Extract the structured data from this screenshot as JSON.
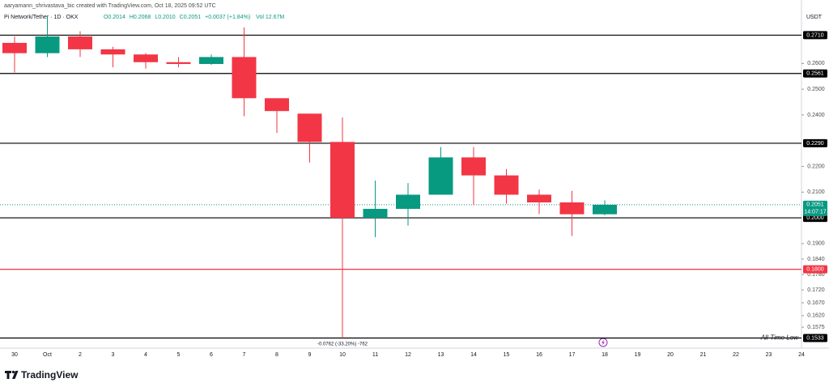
{
  "chart_data": {
    "type": "candlestick",
    "attribution": "aaryamann_shrivastava_bic created with TradingView.com, Oct 18, 2025 09:52 UTC",
    "title": "Pi Network/Tether · 1D · OKX",
    "legend_ohlc": [
      "O0.2014",
      "H0.2068",
      "L0.2010",
      "C0.2051",
      "+0.0037 (+1.84%)"
    ],
    "volume_label": "Vol 12.67M",
    "currency": "USDT",
    "brand": "TradingView",
    "up_color": "#089981",
    "down_color": "#f23645",
    "categories": [
      "30",
      "Oct",
      "2",
      "3",
      "4",
      "5",
      "6",
      "7",
      "8",
      "9",
      "10",
      "11",
      "12",
      "13",
      "14",
      "15",
      "16",
      "17",
      "18",
      "19",
      "20",
      "21",
      "22",
      "23",
      "24"
    ],
    "open": [
      0.268,
      0.264,
      0.2705,
      0.2655,
      0.2635,
      0.2605,
      0.2598,
      0.2625,
      0.2465,
      0.2405,
      0.2295,
      0.2,
      0.2035,
      0.209,
      0.2235,
      0.2165,
      0.209,
      0.206,
      0.2014,
      null,
      null,
      null,
      null,
      null,
      null
    ],
    "high": [
      0.2705,
      0.278,
      0.2725,
      0.2665,
      0.264,
      0.2625,
      0.2635,
      0.274,
      0.2465,
      0.2405,
      0.239,
      0.2145,
      0.2135,
      0.2275,
      0.2275,
      0.219,
      0.211,
      0.2105,
      0.2068,
      null,
      null,
      null,
      null,
      null,
      null
    ],
    "low": [
      0.2565,
      0.2625,
      0.2625,
      0.2585,
      0.258,
      0.2585,
      0.2595,
      0.2395,
      0.233,
      0.2215,
      0.1533,
      0.1925,
      0.197,
      0.209,
      0.205,
      0.2055,
      0.2015,
      0.193,
      0.201,
      null,
      null,
      null,
      null,
      null,
      null
    ],
    "close": [
      0.264,
      0.2705,
      0.2655,
      0.2635,
      0.2605,
      0.2598,
      0.2625,
      0.2465,
      0.2415,
      0.2295,
      0.2,
      0.2035,
      0.209,
      0.2235,
      0.2165,
      0.209,
      0.206,
      0.2014,
      0.2051,
      null,
      null,
      null,
      null,
      null,
      null
    ],
    "ylim": [
      0.15,
      0.279
    ],
    "yticks": [
      {
        "value": 0.26,
        "label": "0.2600"
      },
      {
        "value": 0.25,
        "label": "0.2500"
      },
      {
        "value": 0.24,
        "label": "0.2400"
      },
      {
        "value": 0.22,
        "label": "0.2200"
      },
      {
        "value": 0.21,
        "label": "0.2100"
      },
      {
        "value": 0.19,
        "label": "0.1900"
      },
      {
        "value": 0.184,
        "label": "0.1840"
      },
      {
        "value": 0.178,
        "label": "0.1780"
      },
      {
        "value": 0.172,
        "label": "0.1720"
      },
      {
        "value": 0.167,
        "label": "0.1670"
      },
      {
        "value": 0.162,
        "label": "0.1620"
      },
      {
        "value": 0.1575,
        "label": "0.1575"
      }
    ],
    "levels": [
      {
        "value": 0.271,
        "label": "0.2710",
        "color": "#000000"
      },
      {
        "value": 0.2561,
        "label": "0.2561",
        "color": "#000000"
      },
      {
        "value": 0.229,
        "label": "0.2290",
        "color": "#000000"
      },
      {
        "value": 0.2,
        "label": "0.2000",
        "color": "#000000"
      },
      {
        "value": 0.18,
        "label": "0.1800",
        "color": "#f23645"
      },
      {
        "value": 0.1533,
        "label": "0.1533",
        "color": "#000000",
        "note": "All-Time Low"
      }
    ],
    "last_price": {
      "value": 0.2051,
      "label": "0.2051",
      "countdown": "14:07:17",
      "color": "#089981"
    },
    "range_annotation": "-0.0762 (-33.20%) -762"
  }
}
